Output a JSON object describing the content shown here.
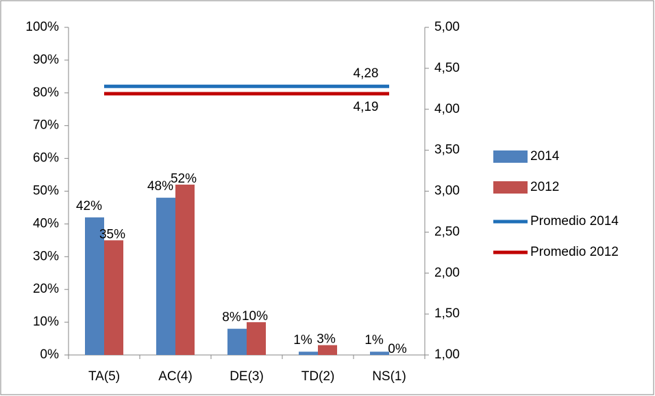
{
  "chart_data": {
    "type": "bar",
    "categories": [
      "TA(5)",
      "AC(4)",
      "DE(3)",
      "TD(2)",
      "NS(1)"
    ],
    "series": [
      {
        "name": "2014",
        "color": "#4f81bd",
        "values": [
          42,
          48,
          8,
          1,
          1
        ],
        "value_labels": [
          "42%",
          "48%",
          "8%",
          "1%",
          "1%"
        ]
      },
      {
        "name": "2012",
        "color": "#c0504d",
        "values": [
          35,
          52,
          10,
          3,
          0
        ],
        "value_labels": [
          "35%",
          "52%",
          "10%",
          "3%",
          "0%"
        ]
      },
      {
        "name": "Promedio 2014",
        "type": "line",
        "axis": "y2",
        "color": "#1f6fb8",
        "values": [
          4.28,
          4.28,
          4.28,
          4.28,
          4.28
        ],
        "value_labels": [
          null,
          null,
          null,
          null,
          "4,28"
        ]
      },
      {
        "name": "Promedio 2012",
        "type": "line",
        "axis": "y2",
        "color": "#c00000",
        "values": [
          4.19,
          4.19,
          4.19,
          4.19,
          4.19
        ],
        "value_labels": [
          null,
          null,
          null,
          null,
          "4,19"
        ]
      }
    ],
    "ylim": [
      0,
      100
    ],
    "yticks": [
      {
        "value": 0,
        "label": "0%"
      },
      {
        "value": 10,
        "label": "10%"
      },
      {
        "value": 20,
        "label": "20%"
      },
      {
        "value": 30,
        "label": "30%"
      },
      {
        "value": 40,
        "label": "40%"
      },
      {
        "value": 50,
        "label": "50%"
      },
      {
        "value": 60,
        "label": "60%"
      },
      {
        "value": 70,
        "label": "70%"
      },
      {
        "value": 80,
        "label": "80%"
      },
      {
        "value": 90,
        "label": "90%"
      },
      {
        "value": 100,
        "label": "100%"
      }
    ],
    "y2lim": [
      1,
      5
    ],
    "y2ticks": [
      {
        "value": 1,
        "label": "1,00"
      },
      {
        "value": 1.5,
        "label": "1,50"
      },
      {
        "value": 2,
        "label": "2,00"
      },
      {
        "value": 2.5,
        "label": "2,50"
      },
      {
        "value": 3,
        "label": "3,00"
      },
      {
        "value": 3.5,
        "label": "3,50"
      },
      {
        "value": 4,
        "label": "4,00"
      },
      {
        "value": 4.5,
        "label": "4,50"
      },
      {
        "value": 5,
        "label": "5,00"
      }
    ],
    "grid": false,
    "legend": "right"
  }
}
